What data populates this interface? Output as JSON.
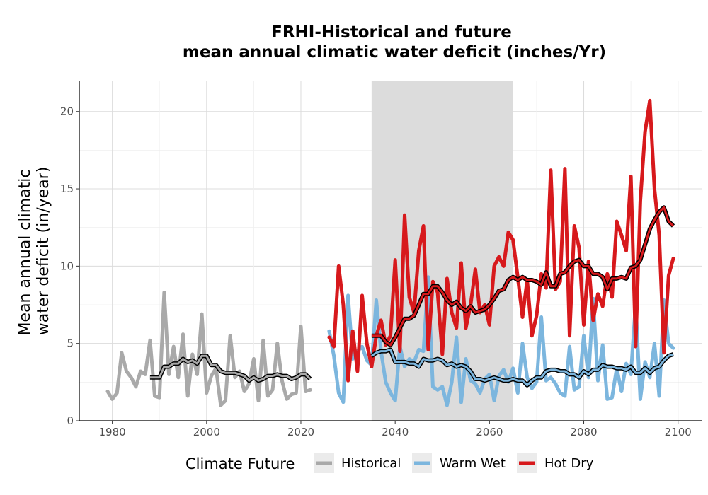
{
  "chart_data": {
    "type": "line",
    "title_line1": "FRHI-Historical and future",
    "title_line2": "mean annual climatic water deficit (inches/Yr)",
    "xlabel": "",
    "ylabel_line1": "Mean annual climatic",
    "ylabel_line2": "water deficit (in/year)",
    "xlim": [
      1973,
      2105
    ],
    "ylim": [
      0,
      22
    ],
    "x_ticks": [
      1980,
      2000,
      2020,
      2040,
      2060,
      2080,
      2100
    ],
    "y_ticks": [
      0,
      5,
      10,
      15,
      20
    ],
    "x_tick_labels": [
      "1980",
      "2000",
      "2020",
      "2040",
      "2060",
      "2080",
      "2100"
    ],
    "y_tick_labels": [
      "0",
      "5",
      "10",
      "15",
      "20"
    ],
    "grid": true,
    "shaded_period": [
      2035,
      2065
    ],
    "legend": {
      "title": "Climate Future",
      "position": "bottom",
      "items": [
        {
          "label": "Historical",
          "color": "#a9a9a9"
        },
        {
          "label": "Warm Wet",
          "color": "#7cb6de"
        },
        {
          "label": "Hot Dry",
          "color": "#d7191c"
        }
      ]
    },
    "series": [
      {
        "name": "Historical",
        "color": "#a9a9a9",
        "x": [
          1979,
          1980,
          1981,
          1982,
          1983,
          1984,
          1985,
          1986,
          1987,
          1988,
          1989,
          1990,
          1991,
          1992,
          1993,
          1994,
          1995,
          1996,
          1997,
          1998,
          1999,
          2000,
          2001,
          2002,
          2003,
          2004,
          2005,
          2006,
          2007,
          2008,
          2009,
          2010,
          2011,
          2012,
          2013,
          2014,
          2015,
          2016,
          2017,
          2018,
          2019,
          2020,
          2021,
          2022
        ],
        "y": [
          1.9,
          1.4,
          1.8,
          4.4,
          3.2,
          2.8,
          2.2,
          3.2,
          3.0,
          5.2,
          1.6,
          1.5,
          8.3,
          3.0,
          4.8,
          2.8,
          5.6,
          1.6,
          4.3,
          3.0,
          6.9,
          1.8,
          2.9,
          3.4,
          1.0,
          1.3,
          5.5,
          2.8,
          3.2,
          1.9,
          2.4,
          4.0,
          1.3,
          5.2,
          1.6,
          2.0,
          5.0,
          2.6,
          1.4,
          1.7,
          1.8,
          6.1,
          1.9,
          2.0
        ]
      },
      {
        "name": "Historical (10-yr rolling mean)",
        "color": "#a9a9a9",
        "smooth": true,
        "x": [
          1988,
          1989,
          1990,
          1991,
          1992,
          1993,
          1994,
          1995,
          1996,
          1997,
          1998,
          1999,
          2000,
          2001,
          2002,
          2003,
          2004,
          2005,
          2006,
          2007,
          2008,
          2009,
          2010,
          2011,
          2012,
          2013,
          2014,
          2015,
          2016,
          2017,
          2018,
          2019,
          2020,
          2021,
          2022
        ],
        "y": [
          2.8,
          2.8,
          2.8,
          3.5,
          3.5,
          3.7,
          3.7,
          4.0,
          3.8,
          3.9,
          3.7,
          4.2,
          4.2,
          3.6,
          3.6,
          3.2,
          3.1,
          3.1,
          3.1,
          3.0,
          2.9,
          2.6,
          2.8,
          2.6,
          2.7,
          2.9,
          2.9,
          3.0,
          2.9,
          2.9,
          2.7,
          2.8,
          3.0,
          3.0,
          2.7
        ]
      },
      {
        "name": "Warm Wet",
        "color": "#7cb6de",
        "x": [
          2026,
          2027,
          2028,
          2029,
          2030,
          2031,
          2032,
          2033,
          2034,
          2035,
          2036,
          2037,
          2038,
          2039,
          2040,
          2041,
          2042,
          2043,
          2044,
          2045,
          2046,
          2047,
          2048,
          2049,
          2050,
          2051,
          2052,
          2053,
          2054,
          2055,
          2056,
          2057,
          2058,
          2059,
          2060,
          2061,
          2062,
          2063,
          2064,
          2065,
          2066,
          2067,
          2068,
          2069,
          2070,
          2071,
          2072,
          2073,
          2074,
          2075,
          2076,
          2077,
          2078,
          2079,
          2080,
          2081,
          2082,
          2083,
          2084,
          2085,
          2086,
          2087,
          2088,
          2089,
          2090,
          2091,
          2092,
          2093,
          2094,
          2095,
          2096,
          2097,
          2098,
          2099
        ],
        "y": [
          5.8,
          4.2,
          1.8,
          1.2,
          8.1,
          4.0,
          4.5,
          4.8,
          3.9,
          3.6,
          7.8,
          4.5,
          2.5,
          1.8,
          1.3,
          4.8,
          3.5,
          4.0,
          3.8,
          4.6,
          4.5,
          9.3,
          2.2,
          2.0,
          2.2,
          1.0,
          2.5,
          5.4,
          1.2,
          4.0,
          2.6,
          2.4,
          1.8,
          2.7,
          3.0,
          1.3,
          2.9,
          3.3,
          2.5,
          3.4,
          1.8,
          5.0,
          2.8,
          2.1,
          2.5,
          6.7,
          2.6,
          2.8,
          2.4,
          1.8,
          1.6,
          4.8,
          2.0,
          2.2,
          5.5,
          2.8,
          7.9,
          2.6,
          4.9,
          1.4,
          1.5,
          3.4,
          1.9,
          3.7,
          3.0,
          7.6,
          1.4,
          3.8,
          2.8,
          5.0,
          1.6,
          7.8,
          5.0,
          4.7
        ]
      },
      {
        "name": "Warm Wet (10-yr rolling mean)",
        "color": "#7cb6de",
        "smooth": true,
        "x": [
          2035,
          2036,
          2037,
          2038,
          2039,
          2040,
          2041,
          2042,
          2043,
          2044,
          2045,
          2046,
          2047,
          2048,
          2049,
          2050,
          2051,
          2052,
          2053,
          2054,
          2055,
          2056,
          2057,
          2058,
          2059,
          2060,
          2061,
          2062,
          2063,
          2064,
          2065,
          2066,
          2067,
          2068,
          2069,
          2070,
          2071,
          2072,
          2073,
          2074,
          2075,
          2076,
          2077,
          2078,
          2079,
          2080,
          2081,
          2082,
          2083,
          2084,
          2085,
          2086,
          2087,
          2088,
          2089,
          2090,
          2091,
          2092,
          2093,
          2094,
          2095,
          2096,
          2097,
          2098,
          2099
        ],
        "y": [
          4.2,
          4.4,
          4.5,
          4.5,
          4.6,
          3.8,
          3.8,
          3.8,
          3.7,
          3.7,
          3.5,
          4.0,
          3.9,
          3.9,
          4.0,
          3.9,
          3.6,
          3.7,
          3.5,
          3.6,
          3.5,
          3.2,
          2.7,
          2.7,
          2.6,
          2.7,
          2.8,
          2.7,
          2.6,
          2.6,
          2.7,
          2.6,
          2.6,
          2.3,
          2.6,
          2.8,
          2.8,
          3.2,
          3.3,
          3.3,
          3.2,
          3.2,
          3.0,
          3.0,
          2.8,
          3.2,
          3.0,
          3.3,
          3.3,
          3.6,
          3.5,
          3.5,
          3.4,
          3.4,
          3.3,
          3.5,
          3.1,
          3.1,
          3.4,
          3.1,
          3.4,
          3.5,
          3.9,
          4.2,
          4.3
        ]
      },
      {
        "name": "Hot Dry",
        "color": "#d7191c",
        "x": [
          2026,
          2027,
          2028,
          2029,
          2030,
          2031,
          2032,
          2033,
          2034,
          2035,
          2036,
          2037,
          2038,
          2039,
          2040,
          2041,
          2042,
          2043,
          2044,
          2045,
          2046,
          2047,
          2048,
          2049,
          2050,
          2051,
          2052,
          2053,
          2054,
          2055,
          2056,
          2057,
          2058,
          2059,
          2060,
          2061,
          2062,
          2063,
          2064,
          2065,
          2066,
          2067,
          2068,
          2069,
          2070,
          2071,
          2072,
          2073,
          2074,
          2075,
          2076,
          2077,
          2078,
          2079,
          2080,
          2081,
          2082,
          2083,
          2084,
          2085,
          2086,
          2087,
          2088,
          2089,
          2090,
          2091,
          2092,
          2093,
          2094,
          2095,
          2096,
          2097,
          2098,
          2099
        ],
        "y": [
          5.4,
          4.8,
          10.0,
          7.5,
          2.6,
          5.8,
          3.2,
          8.1,
          5.0,
          3.5,
          5.5,
          6.5,
          4.9,
          5.5,
          10.4,
          4.5,
          13.3,
          8.0,
          7.0,
          11.0,
          12.6,
          4.6,
          9.0,
          8.3,
          4.3,
          9.2,
          7.0,
          6.0,
          10.2,
          6.0,
          7.5,
          9.8,
          7.0,
          7.5,
          6.2,
          10.0,
          10.6,
          10.0,
          12.2,
          11.7,
          9.3,
          6.7,
          9.1,
          5.5,
          6.8,
          9.5,
          8.6,
          16.2,
          8.5,
          9.0,
          16.3,
          5.5,
          12.6,
          11.2,
          6.2,
          10.3,
          6.5,
          8.2,
          7.4,
          9.5,
          8.0,
          12.9,
          12.0,
          11.0,
          15.8,
          4.8,
          14.2,
          18.7,
          20.7,
          15.0,
          12.0,
          4.4,
          9.4,
          10.5
        ]
      },
      {
        "name": "Hot Dry (10-yr rolling mean)",
        "color": "#d7191c",
        "smooth": true,
        "x": [
          2035,
          2036,
          2037,
          2038,
          2039,
          2040,
          2041,
          2042,
          2043,
          2044,
          2045,
          2046,
          2047,
          2048,
          2049,
          2050,
          2051,
          2052,
          2053,
          2054,
          2055,
          2056,
          2057,
          2058,
          2059,
          2060,
          2061,
          2062,
          2063,
          2064,
          2065,
          2066,
          2067,
          2068,
          2069,
          2070,
          2071,
          2072,
          2073,
          2074,
          2075,
          2076,
          2077,
          2078,
          2079,
          2080,
          2081,
          2082,
          2083,
          2084,
          2085,
          2086,
          2087,
          2088,
          2089,
          2090,
          2091,
          2092,
          2093,
          2094,
          2095,
          2096,
          2097,
          2098,
          2099
        ],
        "y": [
          5.5,
          5.5,
          5.5,
          5.1,
          4.9,
          5.4,
          6.0,
          6.6,
          6.6,
          6.8,
          7.5,
          8.2,
          8.2,
          8.7,
          8.7,
          8.3,
          7.8,
          7.5,
          7.7,
          7.3,
          7.1,
          7.4,
          7.0,
          7.1,
          7.2,
          7.5,
          7.9,
          8.4,
          8.5,
          9.1,
          9.3,
          9.1,
          9.3,
          9.1,
          9.1,
          9.0,
          8.8,
          9.6,
          8.7,
          8.7,
          9.5,
          9.6,
          10.0,
          10.3,
          10.4,
          10.0,
          10.0,
          9.5,
          9.5,
          9.3,
          8.5,
          9.2,
          9.2,
          9.3,
          9.2,
          9.9,
          10.0,
          10.4,
          11.4,
          12.4,
          13.0,
          13.5,
          13.8,
          12.9,
          12.6
        ]
      }
    ]
  }
}
